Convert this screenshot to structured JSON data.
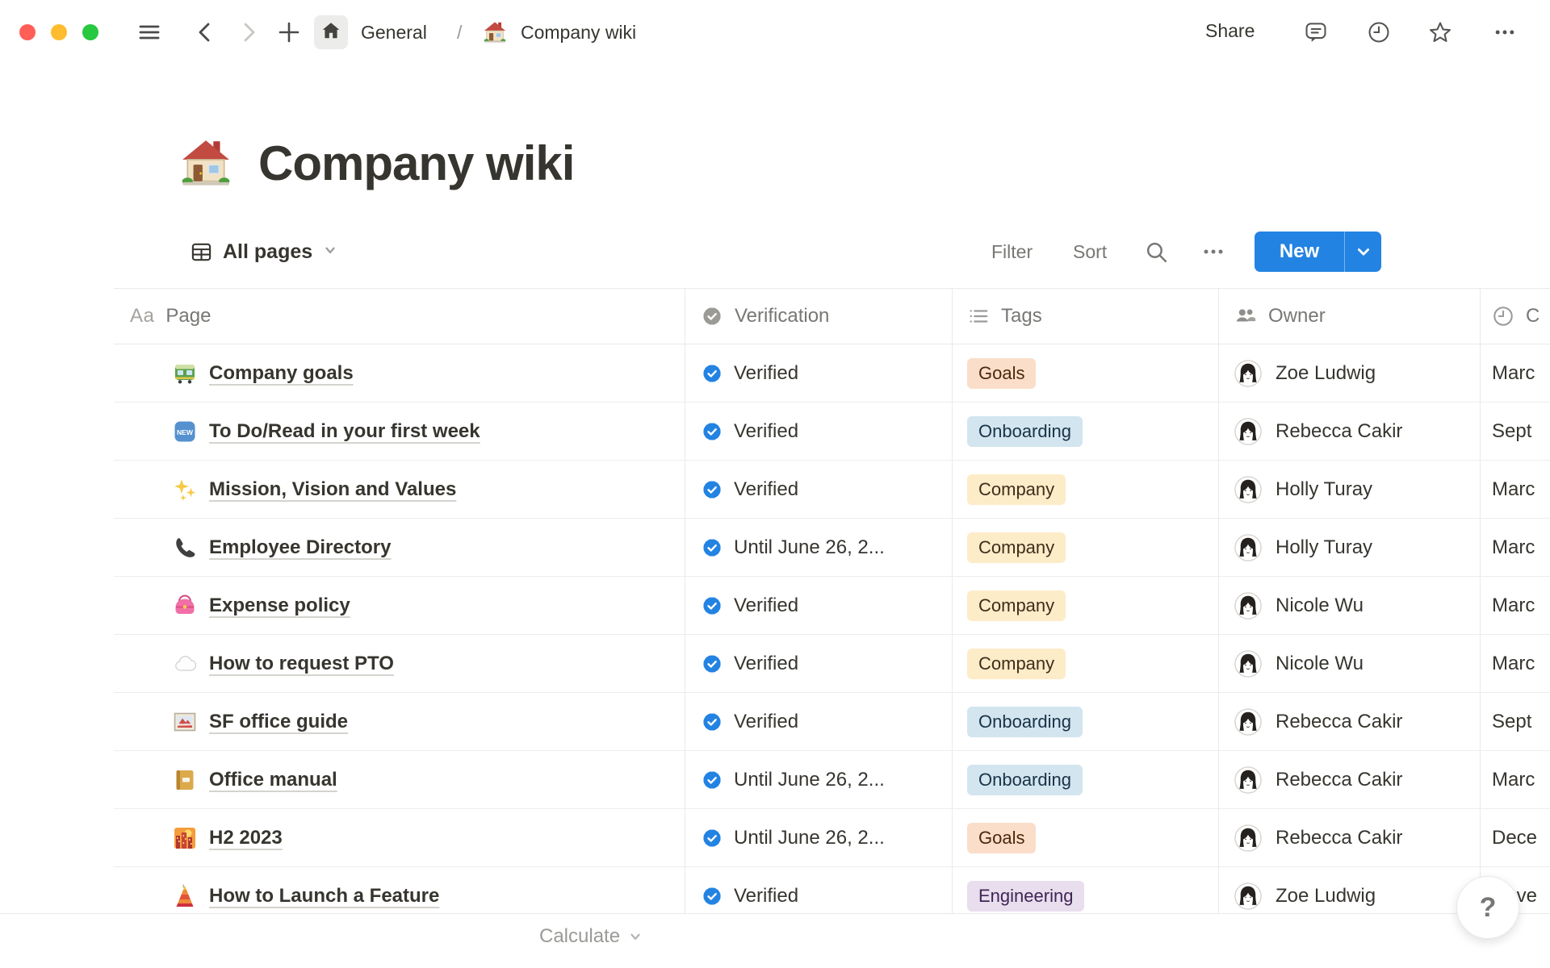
{
  "window": {
    "breadcrumb": {
      "workspace_label": "General",
      "separator": "/",
      "page_label": "Company wiki"
    },
    "share_label": "Share"
  },
  "page": {
    "icon": "house-emoji",
    "title": "Company wiki"
  },
  "toolbar": {
    "view_label": "All pages",
    "filter_label": "Filter",
    "sort_label": "Sort",
    "new_label": "New"
  },
  "table": {
    "columns": [
      {
        "label": "Page",
        "icon": "text-aa-icon"
      },
      {
        "label": "Verification",
        "icon": "verified-badge-icon"
      },
      {
        "label": "Tags",
        "icon": "bulleted-list-icon"
      },
      {
        "label": "Owner",
        "icon": "people-icon"
      },
      {
        "label": "C",
        "icon": "clock-icon"
      }
    ],
    "rows": [
      {
        "icon": "tram-icon",
        "page": "Company goals",
        "verification": "Verified",
        "tag": "Goals",
        "tag_color": "orange",
        "owner": "Zoe Ludwig",
        "date": "Marc"
      },
      {
        "icon": "new-badge-icon",
        "page": "To Do/Read in your first week",
        "verification": "Verified",
        "tag": "Onboarding",
        "tag_color": "blue",
        "owner": "Rebecca Cakir",
        "date": "Sept"
      },
      {
        "icon": "sparkles-icon",
        "page": "Mission, Vision and Values",
        "verification": "Verified",
        "tag": "Company",
        "tag_color": "yellow",
        "owner": "Holly Turay",
        "date": "Marc"
      },
      {
        "icon": "phone-icon",
        "page": "Employee Directory",
        "verification": "Until June 26, 2...",
        "tag": "Company",
        "tag_color": "yellow",
        "owner": "Holly Turay",
        "date": "Marc"
      },
      {
        "icon": "purse-icon",
        "page": "Expense policy",
        "verification": "Verified",
        "tag": "Company",
        "tag_color": "yellow",
        "owner": "Nicole Wu",
        "date": "Marc"
      },
      {
        "icon": "cloud-icon",
        "page": "How to request PTO",
        "verification": "Verified",
        "tag": "Company",
        "tag_color": "yellow",
        "owner": "Nicole Wu",
        "date": "Marc"
      },
      {
        "icon": "framed-picture-icon",
        "page": "SF office guide",
        "verification": "Verified",
        "tag": "Onboarding",
        "tag_color": "blue",
        "owner": "Rebecca Cakir",
        "date": "Sept"
      },
      {
        "icon": "ledger-icon",
        "page": "Office manual",
        "verification": "Until June 26, 2...",
        "tag": "Onboarding",
        "tag_color": "blue",
        "owner": "Rebecca Cakir",
        "date": "Marc"
      },
      {
        "icon": "cityscape-icon",
        "page": "H2 2023",
        "verification": "Until June 26, 2...",
        "tag": "Goals",
        "tag_color": "orange",
        "owner": "Rebecca Cakir",
        "date": "Dece"
      },
      {
        "icon": "tower-icon",
        "page": "How to Launch a Feature",
        "verification": "Verified",
        "tag": "Engineering",
        "tag_color": "purple",
        "owner": "Zoe Ludwig",
        "date": "Nove"
      }
    ],
    "footer": {
      "calculate_label": "Calculate"
    }
  },
  "help": {
    "label": "?"
  },
  "colors": {
    "accent_blue": "#2383E2",
    "traffic_red": "#FF5F57",
    "traffic_yellow": "#FEBC2E",
    "traffic_green": "#28C840",
    "tag_yellow_bg": "#FDECC8",
    "tag_blue_bg": "#D3E5EF",
    "tag_orange_bg": "#FADEC9",
    "tag_purple_bg": "#E8DEEE",
    "divider": "#E9E9E7"
  }
}
